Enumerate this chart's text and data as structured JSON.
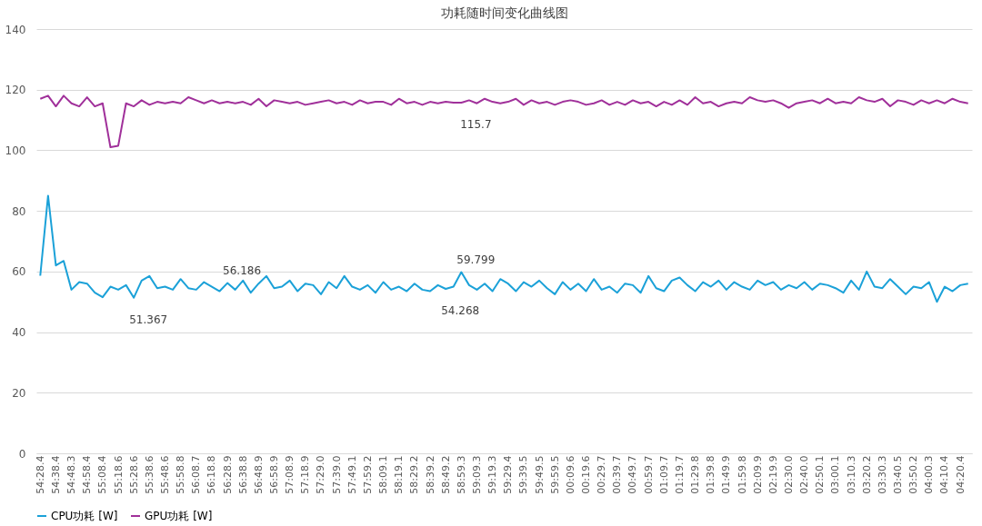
{
  "chart_data": {
    "type": "line",
    "title": "功耗随时间变化曲线图",
    "categories": [
      "54:28.4",
      null,
      "54:38.4",
      null,
      "54:48.3",
      null,
      "54:58.4",
      null,
      "55:08.4",
      null,
      "55:18.6",
      null,
      "55:28.6",
      null,
      "55:38.6",
      null,
      "55:48.6",
      null,
      "55:58.8",
      null,
      "56:08.7",
      null,
      "56:18.8",
      null,
      "56:28.9",
      null,
      "56:38.8",
      null,
      "56:48.9",
      null,
      "56:58.9",
      null,
      "57:08.9",
      null,
      "57:18.9",
      null,
      "57:29.0",
      null,
      "57:39.0",
      null,
      "57:49.1",
      null,
      "57:59.2",
      null,
      "58:09.1",
      null,
      "58:19.1",
      null,
      "58:29.2",
      null,
      "58:39.2",
      null,
      "58:49.2",
      null,
      "58:59.3",
      null,
      "59:09.3",
      null,
      "59:19.3",
      null,
      "59:29.4",
      null,
      "59:39.5",
      null,
      "59:49.5",
      null,
      "59:59.5",
      null,
      "00:09.6",
      null,
      "00:19.6",
      null,
      "00:29.7",
      null,
      "00:39.7",
      null,
      "00:49.7",
      null,
      "00:59.7",
      null,
      "01:09.7",
      null,
      "01:19.7",
      null,
      "01:29.8",
      null,
      "01:39.8",
      null,
      "01:49.9",
      null,
      "01:59.8",
      null,
      "02:09.9",
      null,
      "02:19.9",
      null,
      "02:30.0",
      null,
      "02:40.0",
      null,
      "02:50.1",
      null,
      "03:00.1",
      null,
      "03:10.3",
      null,
      "03:20.2",
      null,
      "03:30.3",
      null,
      "03:40.5",
      null,
      "03:50.2",
      null,
      "04:00.3",
      null,
      "04:10.4",
      null,
      "04:20.4",
      null
    ],
    "series": [
      {
        "name": "CPU功耗 [W]",
        "color": "#1ba1d8",
        "values": [
          58.6,
          85,
          62,
          63.5,
          54,
          56.5,
          56,
          53,
          51.5,
          55,
          54,
          55.5,
          51.367,
          57,
          58.5,
          54.5,
          55,
          54,
          57.5,
          54.5,
          54,
          56.5,
          55,
          53.5,
          56.186,
          54,
          57,
          53,
          56,
          58.5,
          54.5,
          55,
          57,
          53.5,
          56,
          55.5,
          52.5,
          56.5,
          54.5,
          58.5,
          55,
          54,
          55.5,
          53,
          56.5,
          54,
          55,
          53.5,
          56,
          54,
          53.5,
          55.5,
          54.268,
          55,
          59.799,
          55.5,
          54,
          56,
          53.5,
          57.5,
          56,
          53.5,
          56.5,
          55,
          57,
          54.5,
          52.5,
          56.5,
          54,
          56,
          53.5,
          57.5,
          54,
          55,
          53,
          56,
          55.5,
          53,
          58.5,
          54.5,
          53.5,
          57,
          58,
          55.5,
          53.5,
          56.5,
          55,
          57,
          54,
          56.5,
          55,
          54,
          57,
          55.5,
          56.5,
          54,
          55.5,
          54.5,
          56.5,
          54,
          56,
          55.5,
          54.5,
          53,
          57,
          54,
          60,
          55,
          54.5,
          57.5,
          55,
          52.5,
          55,
          54.5,
          56.5,
          50,
          55,
          53.5,
          55.5,
          56
        ]
      },
      {
        "name": "GPU功耗 [W]",
        "color": "#a0309a",
        "values": [
          117,
          118,
          114.5,
          118,
          115.5,
          114.5,
          117.5,
          114.5,
          115.5,
          101,
          101.5,
          115.5,
          114.5,
          116.5,
          115,
          116,
          115.5,
          116,
          115.5,
          117.5,
          116.5,
          115.5,
          116.5,
          115.5,
          116,
          115.5,
          116,
          115,
          117,
          114.5,
          116.5,
          116,
          115.5,
          116,
          115,
          115.5,
          116,
          116.5,
          115.5,
          116,
          115,
          116.5,
          115.5,
          116,
          116,
          115,
          117,
          115.5,
          116,
          115,
          116,
          115.5,
          116,
          115.7,
          115.7,
          116.5,
          115.5,
          117,
          116,
          115.5,
          116,
          117,
          115,
          116.5,
          115.5,
          116,
          115,
          116,
          116.5,
          116,
          115,
          115.5,
          116.5,
          115,
          116,
          115,
          116.5,
          115.5,
          116,
          114.5,
          116,
          115,
          116.5,
          115,
          117.5,
          115.5,
          116,
          114.5,
          115.5,
          116,
          115.5,
          117.5,
          116.5,
          116,
          116.5,
          115.5,
          114,
          115.5,
          116,
          116.5,
          115.5,
          117,
          115.5,
          116,
          115.5,
          117.5,
          116.5,
          116,
          117,
          114.5,
          116.5,
          116,
          115,
          116.5,
          115.5,
          116.5,
          115.5,
          117,
          116,
          115.5
        ]
      }
    ],
    "ylim": [
      0,
      140
    ],
    "yticks": [
      0,
      20,
      40,
      60,
      80,
      100,
      120,
      140
    ],
    "grid": "y",
    "legend": "bottom",
    "annotations": [
      {
        "text": "51.367",
        "x": "55:28.6",
        "y": 51.367
      },
      {
        "text": "56.186",
        "x": "56:28.9",
        "y": 56.186
      },
      {
        "text": "54.268",
        "x": "58:49.2",
        "y": 54.268
      },
      {
        "text": "59.799",
        "x": "58:59.3",
        "y": 59.799
      },
      {
        "text": "115.7",
        "x": "58:59.3",
        "y": 115.7
      }
    ]
  }
}
